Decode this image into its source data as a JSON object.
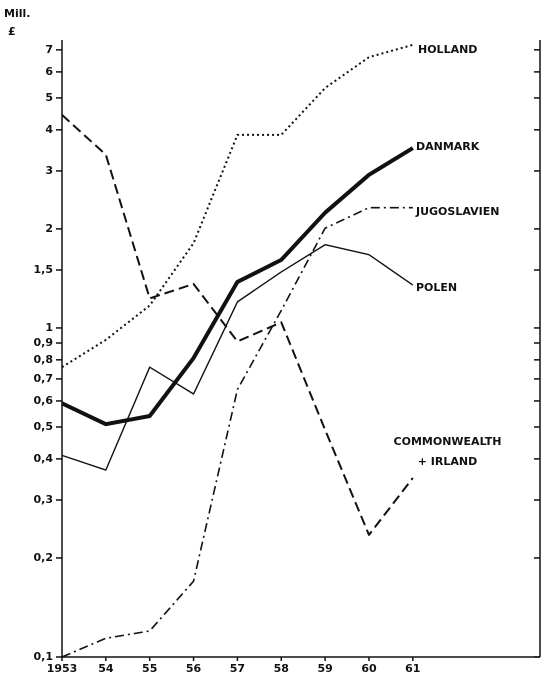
{
  "chart_data": {
    "type": "line",
    "log_y": true,
    "y_unit": [
      "Mill.",
      "£"
    ],
    "x": [
      1953,
      1954,
      1955,
      1956,
      1957,
      1958,
      1959,
      1960,
      1961
    ],
    "xlim": [
      1953,
      1963.9
    ],
    "xticks": [
      1953,
      {
        "value": 1954,
        "label": "54"
      },
      {
        "value": 1955,
        "label": "55"
      },
      {
        "value": 1956,
        "label": "56"
      },
      {
        "value": 1957,
        "label": "57"
      },
      {
        "value": 1958,
        "label": "58"
      },
      {
        "value": 1959,
        "label": "59"
      },
      {
        "value": 1960,
        "label": "60"
      },
      {
        "value": 1961,
        "label": "61"
      }
    ],
    "ylim": [
      0.1,
      7.5
    ],
    "yticks": [
      {
        "value": 0.1,
        "label": "0,1"
      },
      {
        "value": 0.2,
        "label": "0,2"
      },
      {
        "value": 0.3,
        "label": "0,3"
      },
      {
        "value": 0.4,
        "label": "0,4"
      },
      {
        "value": 0.5,
        "label": "0,5"
      },
      {
        "value": 0.6,
        "label": "0,6"
      },
      {
        "value": 0.7,
        "label": "0,7"
      },
      {
        "value": 0.8,
        "label": "0,8"
      },
      {
        "value": 0.9,
        "label": "0,9"
      },
      1,
      {
        "value": 1.5,
        "label": "1,5"
      },
      2,
      3,
      4,
      5,
      6,
      7
    ],
    "series": [
      {
        "name": "HOLLAND",
        "color": "#111",
        "style": "dotted",
        "width": 2,
        "values": [
          0.76,
          0.92,
          1.17,
          1.81,
          3.86,
          3.86,
          5.36,
          6.65,
          7.25
        ]
      },
      {
        "name": "DANMARK",
        "color": "#111",
        "style": "solid",
        "width": 4,
        "values": [
          0.59,
          0.51,
          0.54,
          0.81,
          1.38,
          1.61,
          2.24,
          2.92,
          3.52
        ]
      },
      {
        "name": "JUGOSLAVIEN",
        "color": "#111",
        "style": "dashdot",
        "width": 1.6,
        "values": [
          0.1,
          0.114,
          0.12,
          0.17,
          0.65,
          1.13,
          2.01,
          2.32,
          2.32
        ]
      },
      {
        "name": "POLEN",
        "color": "#111",
        "style": "solid",
        "width": 1.4,
        "values": [
          0.41,
          0.37,
          0.76,
          0.63,
          1.2,
          1.48,
          1.79,
          1.67,
          1.35
        ]
      },
      {
        "name": "COMMONWEALTH + IRLAND",
        "color": "#111",
        "style": "dashed",
        "width": 2,
        "values": [
          4.44,
          3.36,
          1.23,
          1.36,
          0.91,
          1.04,
          0.49,
          0.235,
          0.35
        ]
      }
    ]
  }
}
